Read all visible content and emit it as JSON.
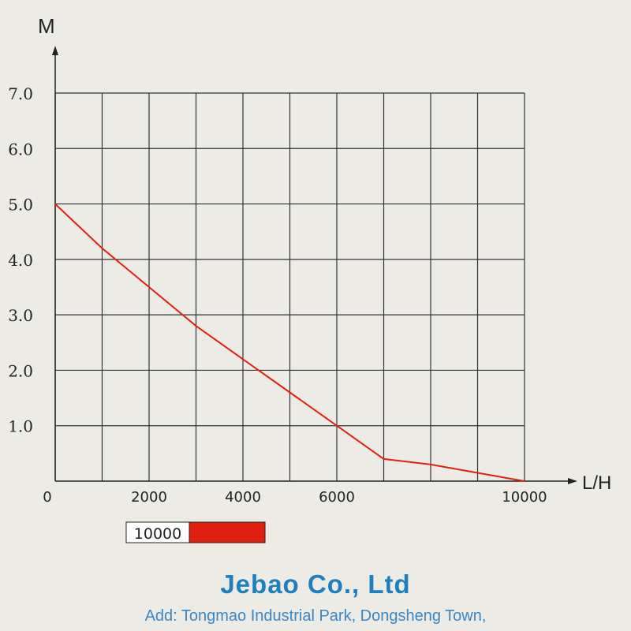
{
  "chart_data": {
    "type": "line",
    "ylabel": "M",
    "xlabel": "L/H",
    "xlim": [
      0,
      10000
    ],
    "ylim": [
      0,
      7
    ],
    "grid": true,
    "x_ticks": [
      {
        "value": 0,
        "label": "0"
      },
      {
        "value": 2000,
        "label": "2000"
      },
      {
        "value": 4000,
        "label": "4000"
      },
      {
        "value": 6000,
        "label": "6000"
      },
      {
        "value": 10000,
        "label": "10000"
      }
    ],
    "y_ticks": [
      {
        "value": 1,
        "label": "1.0"
      },
      {
        "value": 2,
        "label": "2.0"
      },
      {
        "value": 3,
        "label": "3.0"
      },
      {
        "value": 4,
        "label": "4.0"
      },
      {
        "value": 5,
        "label": "5.0"
      },
      {
        "value": 6,
        "label": "6.0"
      },
      {
        "value": 7,
        "label": "7.0"
      }
    ],
    "series": [
      {
        "name": "10000",
        "color": "#e02010",
        "x": [
          0,
          1000,
          2000,
          3000,
          4000,
          5000,
          6000,
          7000,
          8000,
          9000,
          10000
        ],
        "y": [
          5.0,
          4.2,
          3.5,
          2.8,
          2.2,
          1.6,
          1.0,
          0.4,
          0.3,
          0.15,
          0.0
        ]
      }
    ],
    "legend": {
      "label": "10000",
      "color": "#e02010",
      "placement": "bottom-left"
    }
  },
  "footer": {
    "company": "Jebao  Co., Ltd",
    "address": "Add: Tongmao Industrial Park, Dongsheng Town,"
  }
}
